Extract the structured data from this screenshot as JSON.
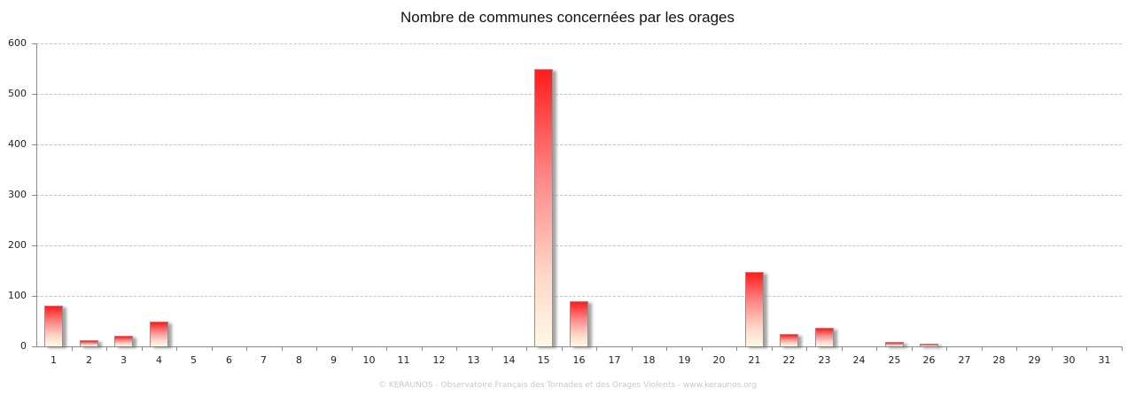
{
  "chart_data": {
    "type": "bar",
    "title": "Nombre de communes concernées par les orages",
    "xlabel": "",
    "ylabel": "",
    "categories": [
      "1",
      "2",
      "3",
      "4",
      "5",
      "6",
      "7",
      "8",
      "9",
      "10",
      "11",
      "12",
      "13",
      "14",
      "15",
      "16",
      "17",
      "18",
      "19",
      "20",
      "21",
      "22",
      "23",
      "24",
      "25",
      "26",
      "27",
      "28",
      "29",
      "30",
      "31"
    ],
    "values": [
      80,
      12,
      21,
      49,
      0,
      0,
      0,
      0,
      0,
      0,
      0,
      0,
      0,
      0,
      549,
      90,
      0,
      0,
      0,
      0,
      147,
      25,
      36,
      0,
      9,
      5,
      0,
      0,
      0,
      0,
      0
    ],
    "ylim": [
      0,
      600
    ],
    "yticks": [
      0,
      100,
      200,
      300,
      400,
      500,
      600
    ],
    "grid": true,
    "legend": "none",
    "colors": {
      "bar_top": "#ff1c1c",
      "bar_bottom": "#fff8e6",
      "bar_border": "#9a8f8f",
      "grid": "#c4c4c4",
      "axis": "#8a8a8a"
    }
  },
  "footer": "© KERAUNOS - Observatoire Français des Tornades et des Orages Violents - www.keraunos.org"
}
